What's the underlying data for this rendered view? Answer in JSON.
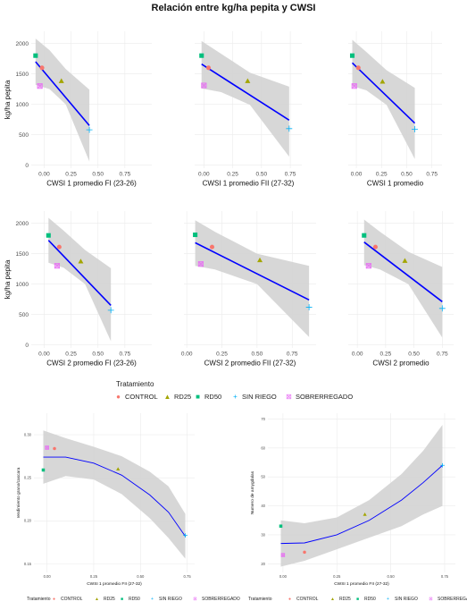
{
  "title": "Relación entre kg/ha pepita y CWSI",
  "colors": {
    "CONTROL": "#f8766d",
    "RD25": "#a3a500",
    "RD50": "#00bf7d",
    "SIN RIEGO": "#00b0f6",
    "SOBRERREGADO": "#e76bf3",
    "fit_line": "#0000ff",
    "ribbon": "#d3d3d3"
  },
  "legend": {
    "title": "Tratamiento",
    "items": [
      {
        "label": "CONTROL",
        "symbol": "●",
        "color_key": "CONTROL"
      },
      {
        "label": "RD25",
        "symbol": "▲",
        "color_key": "RD25"
      },
      {
        "label": "RD50",
        "symbol": "■",
        "color_key": "RD50"
      },
      {
        "label": "SIN RIEGO",
        "symbol": "+",
        "color_key": "SIN RIEGO"
      },
      {
        "label": "SOBRERREGADO",
        "symbol": "⊠",
        "color_key": "SOBRERREGADO"
      }
    ]
  },
  "chart_data": [
    {
      "id": "p1",
      "type": "scatter",
      "xlabel": "CWSI 1 promedio FI (23-26)",
      "ylabel": "kg/ha pepita",
      "xlim": [
        -0.12,
        1.0
      ],
      "ylim": [
        -50,
        2200
      ],
      "xticks": [
        0.0,
        0.25,
        0.5,
        0.75
      ],
      "xtick_labels": [
        "0.00",
        "0.25",
        "0.50",
        "0.75"
      ],
      "yticks": [
        0,
        500,
        1000,
        1500,
        2000
      ],
      "ytick_labels": [
        "0",
        "500",
        "1000",
        "1500",
        "2000"
      ],
      "points": [
        {
          "name": "CONTROL",
          "x": -0.02,
          "y": 1600
        },
        {
          "name": "RD25",
          "x": 0.16,
          "y": 1380
        },
        {
          "name": "RD50",
          "x": -0.08,
          "y": 1800
        },
        {
          "name": "SIN RIEGO",
          "x": 0.42,
          "y": 580
        },
        {
          "name": "SOBRERREGADO",
          "x": -0.04,
          "y": 1300
        }
      ],
      "fit": {
        "x": [
          -0.08,
          0.42
        ],
        "y": [
          1700,
          650
        ]
      },
      "band": {
        "x": [
          -0.08,
          0.05,
          0.2,
          0.42
        ],
        "upper": [
          2080,
          1890,
          1580,
          1240
        ],
        "lower": [
          1320,
          1250,
          1000,
          60
        ]
      }
    },
    {
      "id": "p2",
      "type": "scatter",
      "xlabel": "CWSI 1 promedio FII (27-32)",
      "ylabel": "",
      "xlim": [
        -0.08,
        0.85
      ],
      "ylim": [
        -50,
        2200
      ],
      "xticks": [
        0.0,
        0.25,
        0.5,
        0.75
      ],
      "xtick_labels": [
        "0.00",
        "0.25",
        "0.50",
        "0.75"
      ],
      "yticks": [],
      "ytick_labels": [],
      "points": [
        {
          "name": "CONTROL",
          "x": 0.04,
          "y": 1600
        },
        {
          "name": "RD25",
          "x": 0.38,
          "y": 1380
        },
        {
          "name": "RD50",
          "x": -0.02,
          "y": 1800
        },
        {
          "name": "SIN RIEGO",
          "x": 0.74,
          "y": 600
        },
        {
          "name": "SOBRERREGADO",
          "x": 0.0,
          "y": 1310
        }
      ],
      "fit": {
        "x": [
          -0.02,
          0.74
        ],
        "y": [
          1660,
          740
        ]
      },
      "band": {
        "x": [
          -0.02,
          0.15,
          0.4,
          0.74
        ],
        "upper": [
          2040,
          1830,
          1520,
          1290
        ],
        "lower": [
          1260,
          1200,
          990,
          140
        ]
      }
    },
    {
      "id": "p3",
      "type": "scatter",
      "xlabel": "CWSI 1 promedio",
      "ylabel": "",
      "xlim": [
        -0.08,
        0.85
      ],
      "ylim": [
        -50,
        2200
      ],
      "xticks": [
        0.0,
        0.25,
        0.5,
        0.75
      ],
      "xtick_labels": [
        "0.00",
        "0.25",
        "0.50",
        "0.75"
      ],
      "yticks": [],
      "ytick_labels": [],
      "points": [
        {
          "name": "CONTROL",
          "x": 0.02,
          "y": 1600
        },
        {
          "name": "RD25",
          "x": 0.26,
          "y": 1370
        },
        {
          "name": "RD50",
          "x": -0.04,
          "y": 1800
        },
        {
          "name": "SIN RIEGO",
          "x": 0.58,
          "y": 590
        },
        {
          "name": "SOBRERREGADO",
          "x": -0.02,
          "y": 1300
        }
      ],
      "fit": {
        "x": [
          -0.04,
          0.58
        ],
        "y": [
          1680,
          690
        ]
      },
      "band": {
        "x": [
          -0.04,
          0.1,
          0.3,
          0.58
        ],
        "upper": [
          2060,
          1860,
          1560,
          1270
        ],
        "lower": [
          1300,
          1230,
          990,
          100
        ]
      }
    },
    {
      "id": "p4",
      "type": "scatter",
      "xlabel": "CWSI 2 promedio FI (23-26)",
      "ylabel": "kg/ha pepita",
      "xlim": [
        -0.12,
        1.0
      ],
      "ylim": [
        -50,
        2200
      ],
      "xticks": [
        0.0,
        0.25,
        0.5,
        0.75
      ],
      "xtick_labels": [
        "0.00",
        "0.25",
        "0.50",
        "0.75"
      ],
      "yticks": [
        0,
        500,
        1000,
        1500,
        2000
      ],
      "ytick_labels": [
        "0",
        "500",
        "1000",
        "1500",
        "2000"
      ],
      "points": [
        {
          "name": "CONTROL",
          "x": 0.14,
          "y": 1610
        },
        {
          "name": "RD25",
          "x": 0.34,
          "y": 1370
        },
        {
          "name": "RD50",
          "x": 0.04,
          "y": 1800
        },
        {
          "name": "SIN RIEGO",
          "x": 0.62,
          "y": 570
        },
        {
          "name": "SOBRERREGADO",
          "x": 0.12,
          "y": 1300
        }
      ],
      "fit": {
        "x": [
          0.04,
          0.62
        ],
        "y": [
          1720,
          650
        ]
      },
      "band": {
        "x": [
          0.04,
          0.18,
          0.38,
          0.62
        ],
        "upper": [
          2090,
          1880,
          1560,
          1260
        ],
        "lower": [
          1350,
          1270,
          1000,
          60
        ]
      }
    },
    {
      "id": "p5",
      "type": "scatter",
      "xlabel": "CWSI 2 promedio FII (27-32)",
      "ylabel": "",
      "xlim": [
        -0.02,
        0.92
      ],
      "ylim": [
        -50,
        2200
      ],
      "xticks": [
        0.0,
        0.25,
        0.5,
        0.75
      ],
      "xtick_labels": [
        "0.00",
        "0.25",
        "0.50",
        "0.75"
      ],
      "yticks": [],
      "ytick_labels": [],
      "points": [
        {
          "name": "CONTROL",
          "x": 0.18,
          "y": 1610
        },
        {
          "name": "RD25",
          "x": 0.52,
          "y": 1390
        },
        {
          "name": "RD50",
          "x": 0.06,
          "y": 1810
        },
        {
          "name": "SIN RIEGO",
          "x": 0.87,
          "y": 620
        },
        {
          "name": "SOBRERREGADO",
          "x": 0.1,
          "y": 1330
        }
      ],
      "fit": {
        "x": [
          0.06,
          0.87
        ],
        "y": [
          1680,
          740
        ]
      },
      "band": {
        "x": [
          0.06,
          0.2,
          0.5,
          0.87
        ],
        "upper": [
          2050,
          1860,
          1500,
          1300
        ],
        "lower": [
          1300,
          1240,
          1000,
          130
        ]
      }
    },
    {
      "id": "p6",
      "type": "scatter",
      "xlabel": "CWSI 2 promedio",
      "ylabel": "",
      "xlim": [
        -0.08,
        0.85
      ],
      "ylim": [
        -50,
        2200
      ],
      "xticks": [
        0.0,
        0.25,
        0.5,
        0.75
      ],
      "xtick_labels": [
        "0.00",
        "0.25",
        "0.50",
        "0.75"
      ],
      "yticks": [],
      "ytick_labels": [],
      "points": [
        {
          "name": "CONTROL",
          "x": 0.16,
          "y": 1610
        },
        {
          "name": "RD25",
          "x": 0.42,
          "y": 1380
        },
        {
          "name": "RD50",
          "x": 0.06,
          "y": 1800
        },
        {
          "name": "SIN RIEGO",
          "x": 0.75,
          "y": 600
        },
        {
          "name": "SOBRERREGADO",
          "x": 0.1,
          "y": 1300
        }
      ],
      "fit": {
        "x": [
          0.06,
          0.75
        ],
        "y": [
          1690,
          710
        ]
      },
      "band": {
        "x": [
          0.06,
          0.2,
          0.45,
          0.75
        ],
        "upper": [
          2060,
          1860,
          1530,
          1280
        ],
        "lower": [
          1310,
          1240,
          1000,
          120
        ]
      }
    },
    {
      "id": "p7",
      "type": "scatter",
      "xlabel": "CWSI 1 promedio FII (27-32)",
      "ylabel": "rendimiento grano/cascara",
      "xlim": [
        -0.07,
        0.79
      ],
      "ylim": [
        0.14,
        0.325
      ],
      "xticks": [
        0.0,
        0.25,
        0.5,
        0.75
      ],
      "xtick_labels": [
        "0.00",
        "0.25",
        "0.50",
        "0.75"
      ],
      "yticks": [
        0.15,
        0.2,
        0.25,
        0.3
      ],
      "ytick_labels": [
        "0.15",
        "0.20",
        "0.25",
        "0.30"
      ],
      "points": [
        {
          "name": "CONTROL",
          "x": 0.04,
          "y": 0.284
        },
        {
          "name": "RD25",
          "x": 0.38,
          "y": 0.26
        },
        {
          "name": "RD50",
          "x": -0.02,
          "y": 0.259
        },
        {
          "name": "SIN RIEGO",
          "x": 0.74,
          "y": 0.183
        },
        {
          "name": "SOBRERREGADO",
          "x": 0.0,
          "y": 0.285
        }
      ],
      "fit": {
        "x": [
          -0.02,
          0.1,
          0.25,
          0.4,
          0.55,
          0.65,
          0.74
        ],
        "y": [
          0.274,
          0.274,
          0.267,
          0.253,
          0.23,
          0.21,
          0.182
        ]
      },
      "band": {
        "x": [
          -0.02,
          0.1,
          0.25,
          0.4,
          0.55,
          0.65,
          0.74
        ],
        "upper": [
          0.305,
          0.296,
          0.286,
          0.275,
          0.257,
          0.24,
          0.208
        ],
        "lower": [
          0.243,
          0.252,
          0.248,
          0.231,
          0.203,
          0.18,
          0.156
        ]
      }
    },
    {
      "id": "p8",
      "type": "scatter",
      "xlabel": "CWSI 1 promedio FII (27-32)",
      "ylabel": "Numero de amygdalas",
      "xlim": [
        -0.07,
        0.8
      ],
      "ylim": [
        17,
        72
      ],
      "xticks": [
        0.0,
        0.25,
        0.5,
        0.75
      ],
      "xtick_labels": [
        "0.00",
        "0.25",
        "0.50",
        "0.75"
      ],
      "yticks": [
        20,
        30,
        40,
        50,
        60,
        70
      ],
      "ytick_labels": [
        "20",
        "30",
        "40",
        "50",
        "60",
        "70"
      ],
      "points": [
        {
          "name": "CONTROL",
          "x": 0.1,
          "y": 24
        },
        {
          "name": "RD25",
          "x": 0.38,
          "y": 37
        },
        {
          "name": "RD50",
          "x": -0.01,
          "y": 33
        },
        {
          "name": "SIN RIEGO",
          "x": 0.74,
          "y": 54
        },
        {
          "name": "SOBRERREGADO",
          "x": 0.0,
          "y": 23
        }
      ],
      "fit": {
        "x": [
          -0.01,
          0.1,
          0.25,
          0.4,
          0.55,
          0.65,
          0.74
        ],
        "y": [
          27,
          27.2,
          30,
          35,
          42,
          48,
          54
        ]
      },
      "band": {
        "x": [
          -0.01,
          0.1,
          0.25,
          0.4,
          0.55,
          0.65,
          0.74
        ],
        "upper": [
          35,
          34,
          36,
          42,
          51,
          59,
          68
        ],
        "lower": [
          19,
          21,
          25,
          29,
          33,
          37,
          40
        ]
      }
    }
  ]
}
